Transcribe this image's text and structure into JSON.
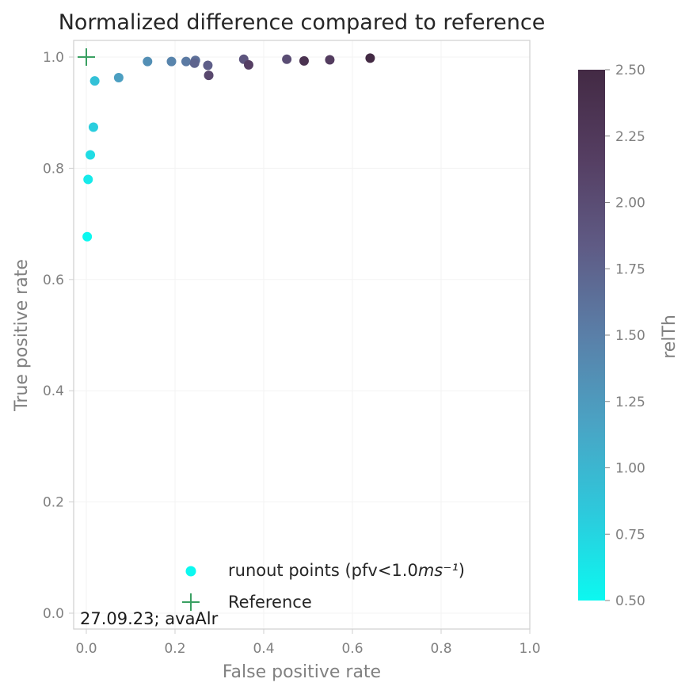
{
  "chart_data": {
    "type": "scatter",
    "title": "Normalized difference compared to reference",
    "xlabel": "False positive rate",
    "ylabel": "True positive rate",
    "xlim": [
      0.0,
      1.0
    ],
    "ylim": [
      0.0,
      1.0
    ],
    "xticks": [
      "0.0",
      "0.2",
      "0.4",
      "0.6",
      "0.8",
      "1.0"
    ],
    "yticks": [
      "0.0",
      "0.2",
      "0.4",
      "0.6",
      "0.8",
      "1.0"
    ],
    "grid": true,
    "colorbar": {
      "label": "relTh",
      "range": [
        0.5,
        2.5
      ],
      "ticks": [
        "0.50",
        "0.75",
        "1.00",
        "1.25",
        "1.50",
        "1.75",
        "2.00",
        "2.25",
        "2.50"
      ],
      "colormap": [
        "#0cf8f0",
        "#2dc9dc",
        "#4aa3c4",
        "#5a7fa8",
        "#5f5b85",
        "#553e62",
        "#432a44"
      ]
    },
    "series": [
      {
        "name": "runout points (pfv<1.0ms⁻¹)",
        "marker": "circle",
        "points": [
          {
            "x": 0.002,
            "y": 0.677,
            "c": 0.5
          },
          {
            "x": 0.004,
            "y": 0.78,
            "c": 0.6
          },
          {
            "x": 0.009,
            "y": 0.824,
            "c": 0.7
          },
          {
            "x": 0.016,
            "y": 0.874,
            "c": 0.8
          },
          {
            "x": 0.019,
            "y": 0.957,
            "c": 0.9
          },
          {
            "x": 0.073,
            "y": 0.963,
            "c": 1.2
          },
          {
            "x": 0.138,
            "y": 0.992,
            "c": 1.35
          },
          {
            "x": 0.192,
            "y": 0.992,
            "c": 1.45
          },
          {
            "x": 0.225,
            "y": 0.992,
            "c": 1.55
          },
          {
            "x": 0.246,
            "y": 0.994,
            "c": 1.65
          },
          {
            "x": 0.244,
            "y": 0.989,
            "c": 1.75
          },
          {
            "x": 0.274,
            "y": 0.985,
            "c": 1.8
          },
          {
            "x": 0.276,
            "y": 0.967,
            "c": 2.05
          },
          {
            "x": 0.355,
            "y": 0.996,
            "c": 1.9
          },
          {
            "x": 0.366,
            "y": 0.986,
            "c": 2.15
          },
          {
            "x": 0.452,
            "y": 0.996,
            "c": 2.0
          },
          {
            "x": 0.491,
            "y": 0.993,
            "c": 2.35
          },
          {
            "x": 0.549,
            "y": 0.995,
            "c": 2.2
          },
          {
            "x": 0.64,
            "y": 0.998,
            "c": 2.5
          }
        ]
      },
      {
        "name": "Reference",
        "marker": "plus",
        "color": "#3aa062",
        "points": [
          {
            "x": 0.0,
            "y": 1.0
          }
        ]
      }
    ],
    "legend_placement": "bottom-right",
    "annotation": "27.09.23; avaAlr"
  }
}
